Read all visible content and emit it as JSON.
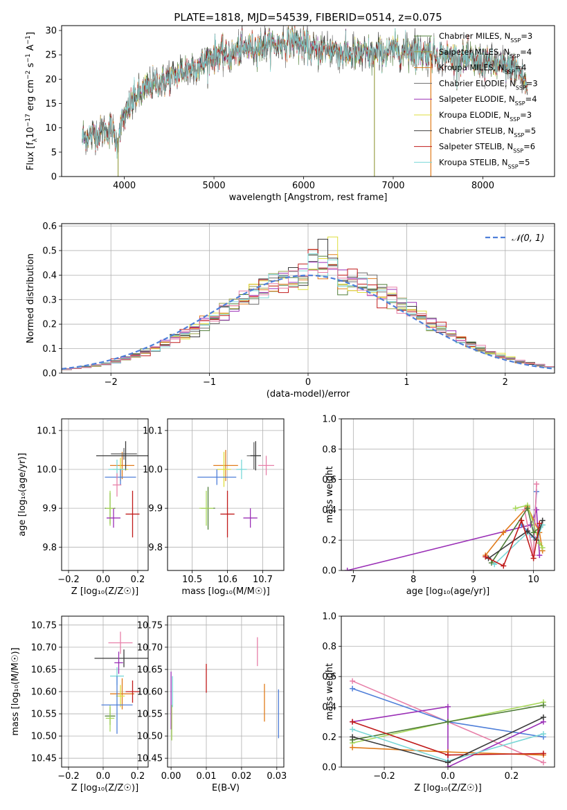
{
  "title": "PLATE=1818, MJD=54539, FIBERID=0514, z=0.075",
  "colors": {
    "ChabrierMILES": "#4f7d38",
    "SalpeterMILES": "#9aa24a",
    "KroupaMILES": "#e07b1a",
    "ChabrierELODIE": "#6e6e6e",
    "SalpeterELODIE": "#9a2fb6",
    "KroupaELODIE": "#dede3c",
    "ChabrierSTELIB": "#3a3a3a",
    "SalpeterSTELIB": "#c01a1a",
    "KroupaSTELIB": "#7ad7d7",
    "blue": "#4f7fd9",
    "pink": "#e77fa8",
    "green": "#a8d85a"
  },
  "chart_data": [
    {
      "id": "spectrum",
      "type": "line",
      "title": "PLATE=1818, MJD=54539, FIBERID=0514, z=0.075",
      "xlabel": "wavelength [Angstrom, rest frame]",
      "ylabel_parts": [
        "Flux [f",
        "λ",
        "10",
        "−17",
        " erg cm",
        "−2",
        " s",
        "−1",
        " A",
        "−1",
        "]"
      ],
      "xlim": [
        3300,
        8800
      ],
      "ylim": [
        0,
        31
      ],
      "xticks": [
        4000,
        5000,
        6000,
        7000,
        8000
      ],
      "yticks": [
        0,
        5,
        10,
        15,
        20,
        25,
        30
      ],
      "continuum": [
        [
          3530,
          8
        ],
        [
          3700,
          9
        ],
        [
          3850,
          10
        ],
        [
          3920,
          7
        ],
        [
          3950,
          10
        ],
        [
          4000,
          12
        ],
        [
          4100,
          16
        ],
        [
          4300,
          19
        ],
        [
          4500,
          20
        ],
        [
          4700,
          22
        ],
        [
          4860,
          23
        ],
        [
          5000,
          25
        ],
        [
          5175,
          25
        ],
        [
          5300,
          26
        ],
        [
          5500,
          27
        ],
        [
          5700,
          27
        ],
        [
          5900,
          28
        ],
        [
          6100,
          26
        ],
        [
          6300,
          26
        ],
        [
          6563,
          25
        ],
        [
          6800,
          25
        ],
        [
          7000,
          26
        ],
        [
          7200,
          26
        ],
        [
          7500,
          25
        ],
        [
          7800,
          24
        ],
        [
          8100,
          23
        ],
        [
          8400,
          22
        ],
        [
          8500,
          18
        ]
      ],
      "legend": [
        {
          "name": "Chabrier MILES, N",
          "sub": "SSP",
          "suffix": "=3",
          "color": "#4f7d38"
        },
        {
          "name": "Salpeter MILES, N",
          "sub": "SSP",
          "suffix": "=4",
          "color": "#9aa24a"
        },
        {
          "name": "Kroupa MILES, N",
          "sub": "SSP",
          "suffix": "=4",
          "color": "#e07b1a"
        },
        {
          "name": "Chabrier ELODIE, N",
          "sub": "SSP",
          "suffix": "=3",
          "color": "#6e6e6e"
        },
        {
          "name": "Salpeter ELODIE, N",
          "sub": "SSP",
          "suffix": "=4",
          "color": "#9a2fb6"
        },
        {
          "name": "Kroupa ELODIE, N",
          "sub": "SSP",
          "suffix": "=3",
          "color": "#dede3c"
        },
        {
          "name": "Chabrier STELIB, N",
          "sub": "SSP",
          "suffix": "=5",
          "color": "#3a3a3a"
        },
        {
          "name": "Salpeter STELIB, N",
          "sub": "SSP",
          "suffix": "=6",
          "color": "#c01a1a"
        },
        {
          "name": "Kroupa STELIB, N",
          "sub": "SSP",
          "suffix": "=5",
          "color": "#7ad7d7"
        }
      ],
      "drops": [
        {
          "x": 3930,
          "color": "#9aa24a"
        },
        {
          "x": 6790,
          "color": "#9aa24a"
        },
        {
          "x": 7420,
          "color": "#e07b1a"
        }
      ]
    },
    {
      "id": "residuals",
      "type": "step",
      "xlabel": "(data-model)/error",
      "ylabel": "Normed distribution",
      "xlim": [
        -2.5,
        2.5
      ],
      "ylim": [
        0,
        0.61
      ],
      "xticks": [
        -2,
        -1,
        0,
        1,
        2
      ],
      "xticklabels": [
        "−2",
        "−1",
        "0",
        "1",
        "2"
      ],
      "yticks": [
        0.0,
        0.1,
        0.2,
        0.3,
        0.4,
        0.5,
        0.6
      ],
      "yticklabels": [
        "0.0",
        "0.1",
        "0.2",
        "0.3",
        "0.4",
        "0.5",
        "0.6"
      ],
      "grid": true,
      "legend": {
        "label": "𝒩(0, 1)",
        "position": "top-right"
      },
      "bin_width": 0.1,
      "bin_start": -2.5,
      "gaussian": {
        "mean": 0,
        "sigma": 1
      }
    },
    {
      "id": "age-vs-z",
      "type": "errorbar",
      "xlabel": "Z [log₁₀(Z/Z☉)]",
      "ylabel": "age  [log₁₀(age/yr)]",
      "xlim": [
        -0.24,
        0.26
      ],
      "ylim": [
        9.74,
        10.13
      ],
      "xticks": [
        -0.2,
        0.0,
        0.2
      ],
      "xticklabels": [
        "−0.2",
        "0.0",
        "0.2"
      ],
      "yticks": [
        9.8,
        9.9,
        10.0,
        10.1
      ],
      "yticklabels": [
        "9.8",
        "9.9",
        "10.0",
        "10.1"
      ],
      "grid": true,
      "points": [
        {
          "x": 0.04,
          "y": 9.9,
          "xe": 0.06,
          "ye": 0.08,
          "color": "#4f7d38"
        },
        {
          "x": 0.04,
          "y": 9.9,
          "xe": 0.05,
          "ye": 0.09,
          "color": "#a8d85a"
        },
        {
          "x": 0.11,
          "y": 10.01,
          "xe": 0.14,
          "ye": 0.07,
          "color": "#e07b1a"
        },
        {
          "x": 0.12,
          "y": 10.04,
          "xe": 0.15,
          "ye": 0.03,
          "color": "#6e6e6e"
        },
        {
          "x": 0.06,
          "y": 9.875,
          "xe": 0.08,
          "ye": 0.05,
          "color": "#9a2fb6"
        },
        {
          "x": 0.1,
          "y": 10.0,
          "xe": 0.09,
          "ye": 0.06,
          "color": "#dede3c"
        },
        {
          "x": 0.13,
          "y": 10.035,
          "xe": 0.34,
          "ye": 0.075,
          "color": "#3a3a3a"
        },
        {
          "x": 0.17,
          "y": 9.885,
          "xe": 0.08,
          "ye": 0.12,
          "color": "#c01a1a"
        },
        {
          "x": 0.08,
          "y": 10.0,
          "xe": 0.1,
          "ye": 0.05,
          "color": "#7ad7d7"
        },
        {
          "x": 0.1,
          "y": 9.98,
          "xe": 0.18,
          "ye": 0.04,
          "color": "#4f7fd9"
        },
        {
          "x": 0.08,
          "y": 9.96,
          "xe": 0.05,
          "ye": 0.06,
          "color": "#e77fa8"
        }
      ]
    },
    {
      "id": "age-vs-mass",
      "type": "errorbar",
      "xlabel": "mass [log₁₀(M/M☉)]",
      "ylabel": "",
      "xlim": [
        10.43,
        10.76
      ],
      "ylim": [
        9.74,
        10.13
      ],
      "xticks": [
        10.5,
        10.6,
        10.7
      ],
      "xticklabels": [
        "10.5",
        "10.6",
        "10.7"
      ],
      "yticks": [
        9.8,
        9.9,
        10.0,
        10.1
      ],
      "yticklabels": [
        "9.8",
        "9.9",
        "10.0",
        "10.1"
      ],
      "grid": true,
      "points": [
        {
          "x": 10.545,
          "y": 9.9,
          "xe": 0.04,
          "ye": 0.11,
          "color": "#4f7d38"
        },
        {
          "x": 10.54,
          "y": 9.9,
          "xe": 0.04,
          "ye": 0.09,
          "color": "#a8d85a"
        },
        {
          "x": 10.595,
          "y": 10.01,
          "xe": 0.07,
          "ye": 0.08,
          "color": "#e07b1a"
        },
        {
          "x": 10.675,
          "y": 10.035,
          "xe": 0.04,
          "ye": 0.07,
          "color": "#6e6e6e"
        },
        {
          "x": 10.665,
          "y": 9.875,
          "xe": 0.04,
          "ye": 0.05,
          "color": "#9a2fb6"
        },
        {
          "x": 10.59,
          "y": 10.0,
          "xe": 0.04,
          "ye": 0.09,
          "color": "#dede3c"
        },
        {
          "x": 10.68,
          "y": 10.035,
          "xe": 0.03,
          "ye": 0.075,
          "color": "#3a3a3a"
        },
        {
          "x": 10.6,
          "y": 9.885,
          "xe": 0.04,
          "ye": 0.12,
          "color": "#c01a1a"
        },
        {
          "x": 10.64,
          "y": 10.0,
          "xe": 0.03,
          "ye": 0.05,
          "color": "#7ad7d7"
        },
        {
          "x": 10.57,
          "y": 9.98,
          "xe": 0.11,
          "ye": 0.04,
          "color": "#4f7fd9"
        },
        {
          "x": 10.71,
          "y": 10.01,
          "xe": 0.045,
          "ye": 0.05,
          "color": "#e77fa8"
        }
      ]
    },
    {
      "id": "weight-vs-age",
      "type": "line",
      "xlabel": "age  [log₁₀(age/yr)]",
      "ylabel": "mass weight",
      "xlim": [
        6.8,
        10.35
      ],
      "ylim": [
        0,
        1
      ],
      "xticks": [
        7,
        8,
        9,
        10
      ],
      "xticklabels": [
        "7",
        "8",
        "9",
        "10"
      ],
      "yticks": [
        0.0,
        0.2,
        0.4,
        0.6,
        0.8,
        1.0
      ],
      "yticklabels": [
        "0.0",
        "0.2",
        "0.4",
        "0.6",
        "0.8",
        "1.0"
      ],
      "grid": true,
      "series": [
        {
          "color": "#9a2fb6",
          "x": [
            6.9,
            9.95,
            10.05,
            10.1
          ],
          "y": [
            0.0,
            0.3,
            0.4,
            0.1
          ]
        },
        {
          "color": "#e07b1a",
          "x": [
            9.2,
            9.5,
            9.9,
            10.1,
            10.15
          ],
          "y": [
            0.1,
            0.25,
            0.42,
            0.25,
            0.13
          ]
        },
        {
          "color": "#4f7fd9",
          "x": [
            9.8,
            10.0,
            10.05
          ],
          "y": [
            0.3,
            0.22,
            0.52
          ]
        },
        {
          "color": "#e77fa8",
          "x": [
            9.85,
            10.0,
            10.05
          ],
          "y": [
            0.4,
            0.1,
            0.57
          ]
        },
        {
          "color": "#a8d85a",
          "x": [
            9.7,
            9.9,
            10.1,
            10.15
          ],
          "y": [
            0.41,
            0.43,
            0.18,
            0.15
          ]
        },
        {
          "color": "#4f7d38",
          "x": [
            9.3,
            9.9,
            10.0,
            10.15
          ],
          "y": [
            0.05,
            0.41,
            0.25,
            0.3
          ]
        },
        {
          "color": "#7ad7d7",
          "x": [
            9.35,
            9.9,
            10.05,
            10.15
          ],
          "y": [
            0.04,
            0.25,
            0.2,
            0.3
          ]
        },
        {
          "color": "#3a3a3a",
          "x": [
            9.25,
            9.9,
            10.05,
            10.15
          ],
          "y": [
            0.08,
            0.26,
            0.2,
            0.33
          ]
        },
        {
          "color": "#c01a1a",
          "x": [
            9.2,
            9.5,
            9.8,
            10.0,
            10.1
          ],
          "y": [
            0.09,
            0.03,
            0.33,
            0.08,
            0.31
          ]
        }
      ]
    },
    {
      "id": "mass-vs-z",
      "type": "errorbar",
      "xlabel": "Z [log₁₀(Z/Z☉)]",
      "ylabel": "mass [log₁₀(M/M☉)]",
      "xlim": [
        -0.24,
        0.26
      ],
      "ylim": [
        10.43,
        10.77
      ],
      "xticks": [
        -0.2,
        0.0,
        0.2
      ],
      "xticklabels": [
        "−0.2",
        "0.0",
        "0.2"
      ],
      "yticks": [
        10.45,
        10.5,
        10.55,
        10.6,
        10.65,
        10.7,
        10.75
      ],
      "yticklabels": [
        "10.45",
        "10.50",
        "10.55",
        "10.60",
        "10.65",
        "10.70",
        "10.75"
      ],
      "grid": true,
      "points": [
        {
          "x": 0.04,
          "y": 10.545,
          "xe": 0.06,
          "ye": 0.04,
          "color": "#4f7d38"
        },
        {
          "x": 0.04,
          "y": 10.54,
          "xe": 0.05,
          "ye": 0.06,
          "color": "#a8d85a"
        },
        {
          "x": 0.11,
          "y": 10.595,
          "xe": 0.14,
          "ye": 0.07,
          "color": "#e07b1a"
        },
        {
          "x": 0.12,
          "y": 10.675,
          "xe": 0.34,
          "ye": 0.04,
          "color": "#3a3a3a"
        },
        {
          "x": 0.09,
          "y": 10.665,
          "xe": 0.05,
          "ye": 0.05,
          "color": "#9a2fb6"
        },
        {
          "x": 0.1,
          "y": 10.59,
          "xe": 0.05,
          "ye": 0.05,
          "color": "#dede3c"
        },
        {
          "x": 0.17,
          "y": 10.6,
          "xe": 0.08,
          "ye": 0.05,
          "color": "#c01a1a"
        },
        {
          "x": 0.08,
          "y": 10.635,
          "xe": 0.08,
          "ye": 0.04,
          "color": "#7ad7d7"
        },
        {
          "x": 0.08,
          "y": 10.57,
          "xe": 0.18,
          "ye": 0.13,
          "color": "#4f7fd9"
        },
        {
          "x": 0.1,
          "y": 10.71,
          "xe": 0.14,
          "ye": 0.05,
          "color": "#e77fa8"
        }
      ]
    },
    {
      "id": "mass-vs-ebv",
      "type": "errorbar",
      "xlabel": "E(B-V)",
      "ylabel": "",
      "xlim": [
        -0.001,
        0.032
      ],
      "ylim": [
        10.43,
        10.77
      ],
      "xticks": [
        0.0,
        0.01,
        0.02,
        0.03
      ],
      "xticklabels": [
        "0.00",
        "0.01",
        "0.02",
        "0.03"
      ],
      "yticks": [
        10.45,
        10.5,
        10.55,
        10.6,
        10.65,
        10.7,
        10.75
      ],
      "yticklabels": [
        "10.45",
        "10.50",
        "10.55",
        "10.60",
        "10.65",
        "10.70",
        "10.75"
      ],
      "grid": true,
      "points": [
        {
          "x": 0.0,
          "y": 10.58,
          "xe": 0.0,
          "ye": 0.13,
          "color": "#9a2fb6"
        },
        {
          "x": 0.0002,
          "y": 10.53,
          "xe": 0.0,
          "ye": 0.08,
          "color": "#a8d85a"
        },
        {
          "x": 0.0004,
          "y": 10.6,
          "xe": 0.0,
          "ye": 0.07,
          "color": "#7ad7d7"
        },
        {
          "x": 0.01,
          "y": 10.63,
          "xe": 0.0,
          "ye": 0.065,
          "color": "#c01a1a"
        },
        {
          "x": 0.0245,
          "y": 10.69,
          "xe": 0.0,
          "ye": 0.065,
          "color": "#e77fa8"
        },
        {
          "x": 0.0265,
          "y": 10.575,
          "xe": 0.0,
          "ye": 0.085,
          "color": "#e07b1a"
        },
        {
          "x": 0.0305,
          "y": 10.55,
          "xe": 0.0,
          "ye": 0.11,
          "color": "#4f7fd9"
        }
      ]
    },
    {
      "id": "weight-vs-z",
      "type": "line",
      "xlabel": "Z [log₁₀(Z/Z☉)]",
      "ylabel": "mass weight",
      "xlim": [
        -0.335,
        0.335
      ],
      "ylim": [
        0,
        1
      ],
      "xticks": [
        -0.2,
        0.0,
        0.2
      ],
      "xticklabels": [
        "−0.2",
        "0.0",
        "0.2"
      ],
      "yticks": [
        0.0,
        0.2,
        0.4,
        0.6,
        0.8,
        1.0
      ],
      "yticklabels": [
        "0.0",
        "0.2",
        "0.4",
        "0.6",
        "0.8",
        "1.0"
      ],
      "grid": true,
      "series": [
        {
          "color": "#e77fa8",
          "x": [
            -0.3,
            0.0,
            0.3
          ],
          "y": [
            0.57,
            0.3,
            0.03
          ]
        },
        {
          "color": "#4f7fd9",
          "x": [
            -0.3,
            0.0,
            0.3
          ],
          "y": [
            0.52,
            0.3,
            0.2
          ]
        },
        {
          "color": "#9a2fb6",
          "x": [
            -0.3,
            0.0,
            0.0,
            0.3
          ],
          "y": [
            0.3,
            0.4,
            0.0,
            0.3
          ]
        },
        {
          "color": "#a8d85a",
          "x": [
            -0.3,
            0.0,
            0.3
          ],
          "y": [
            0.16,
            0.3,
            0.43
          ]
        },
        {
          "color": "#4f7d38",
          "x": [
            -0.3,
            0.0,
            0.3
          ],
          "y": [
            0.18,
            0.3,
            0.41
          ]
        },
        {
          "color": "#e07b1a",
          "x": [
            -0.3,
            0.0,
            0.3
          ],
          "y": [
            0.13,
            0.1,
            0.08
          ]
        },
        {
          "color": "#c01a1a",
          "x": [
            -0.3,
            0.0,
            0.3
          ],
          "y": [
            0.3,
            0.08,
            0.09
          ]
        },
        {
          "color": "#7ad7d7",
          "x": [
            -0.3,
            0.0,
            0.3
          ],
          "y": [
            0.25,
            0.04,
            0.22
          ]
        },
        {
          "color": "#3a3a3a",
          "x": [
            -0.3,
            0.0,
            0.3
          ],
          "y": [
            0.2,
            0.03,
            0.33
          ]
        }
      ]
    }
  ]
}
